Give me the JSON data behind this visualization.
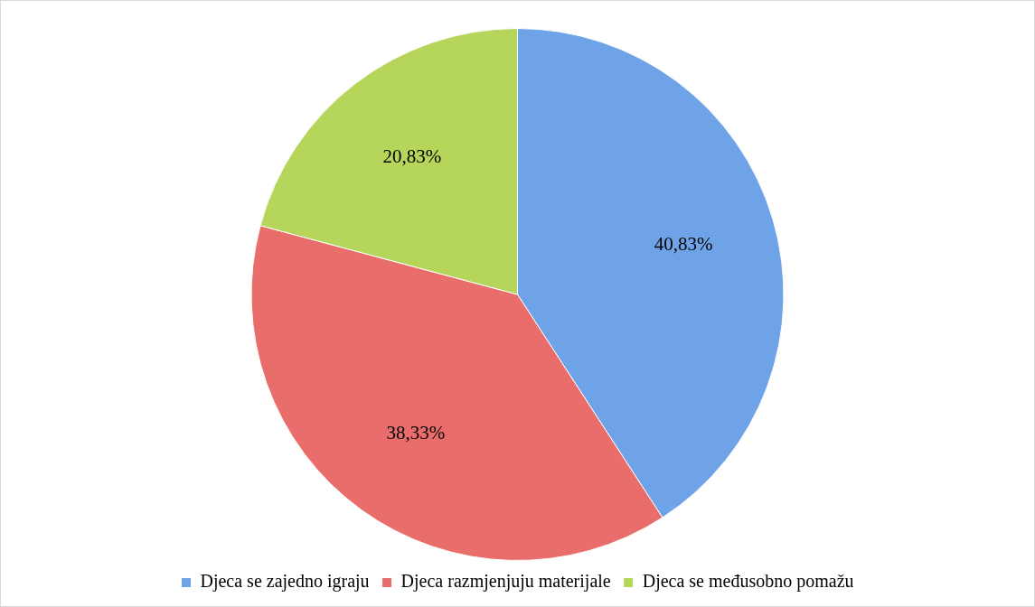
{
  "chart_data": {
    "type": "pie",
    "categories": [
      "Djeca se zajedno igraju",
      "Djeca razmjenjuju materijale",
      "Djeca se međusobno pomažu"
    ],
    "values": [
      40.83,
      38.33,
      20.83
    ],
    "value_labels": [
      "40,83%",
      "38,33%",
      "20,83%"
    ],
    "colors": [
      "#6fa3e8",
      "#e86d6b",
      "#b5d65a"
    ],
    "legend": "bottom"
  }
}
